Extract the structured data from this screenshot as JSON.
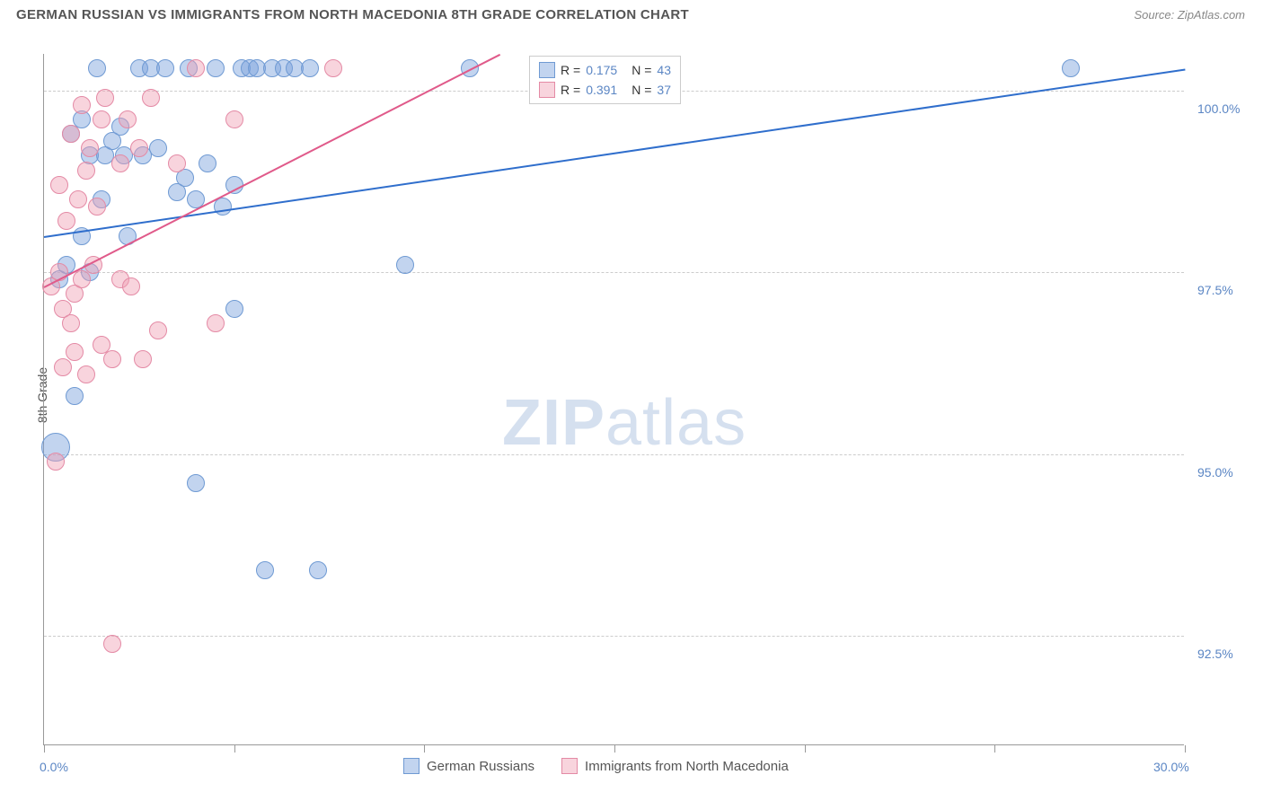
{
  "header": {
    "title": "GERMAN RUSSIAN VS IMMIGRANTS FROM NORTH MACEDONIA 8TH GRADE CORRELATION CHART",
    "source": "Source: ZipAtlas.com"
  },
  "chart": {
    "type": "scatter",
    "y_axis_label": "8th Grade",
    "background_color": "#ffffff",
    "grid_color": "#cccccc",
    "axis_color": "#999999",
    "label_color": "#5b86c4",
    "xlim": [
      0,
      30
    ],
    "ylim": [
      91.0,
      100.5
    ],
    "y_ticks": [
      {
        "v": 92.5,
        "label": "92.5%"
      },
      {
        "v": 95.0,
        "label": "95.0%"
      },
      {
        "v": 97.5,
        "label": "97.5%"
      },
      {
        "v": 100.0,
        "label": "100.0%"
      }
    ],
    "x_ticks": [
      0,
      5,
      10,
      15,
      20,
      25,
      30
    ],
    "x_tick_labels": [
      {
        "v": 0,
        "label": "0.0%"
      },
      {
        "v": 30,
        "label": "30.0%"
      }
    ],
    "watermark": {
      "text_bold": "ZIP",
      "text_rest": "atlas"
    },
    "series": [
      {
        "name": "German Russians",
        "color_fill": "rgba(120,160,220,0.45)",
        "color_stroke": "#6f9ad3",
        "marker_radius": 10,
        "r_value": "0.175",
        "n_value": "43",
        "trend": {
          "x1": 0,
          "y1": 98.0,
          "x2": 30,
          "y2": 100.3,
          "color": "#2f6ecc",
          "width": 2
        },
        "points": [
          {
            "x": 0.3,
            "y": 95.1,
            "r": 16
          },
          {
            "x": 0.4,
            "y": 97.4
          },
          {
            "x": 0.6,
            "y": 97.6
          },
          {
            "x": 0.7,
            "y": 99.4
          },
          {
            "x": 0.8,
            "y": 95.8
          },
          {
            "x": 1.0,
            "y": 98.0
          },
          {
            "x": 1.0,
            "y": 99.6
          },
          {
            "x": 1.2,
            "y": 99.1
          },
          {
            "x": 1.2,
            "y": 97.5
          },
          {
            "x": 1.4,
            "y": 100.3
          },
          {
            "x": 1.5,
            "y": 98.5
          },
          {
            "x": 1.6,
            "y": 99.1
          },
          {
            "x": 1.8,
            "y": 99.3
          },
          {
            "x": 2.0,
            "y": 99.5
          },
          {
            "x": 2.1,
            "y": 99.1
          },
          {
            "x": 2.2,
            "y": 98.0
          },
          {
            "x": 2.5,
            "y": 100.3
          },
          {
            "x": 2.6,
            "y": 99.1
          },
          {
            "x": 2.8,
            "y": 100.3
          },
          {
            "x": 3.0,
            "y": 99.2
          },
          {
            "x": 3.2,
            "y": 100.3
          },
          {
            "x": 3.5,
            "y": 98.6
          },
          {
            "x": 3.7,
            "y": 98.8
          },
          {
            "x": 3.8,
            "y": 100.3
          },
          {
            "x": 4.0,
            "y": 98.5
          },
          {
            "x": 4.0,
            "y": 94.6
          },
          {
            "x": 4.3,
            "y": 99.0
          },
          {
            "x": 4.5,
            "y": 100.3
          },
          {
            "x": 4.7,
            "y": 98.4
          },
          {
            "x": 5.0,
            "y": 98.7
          },
          {
            "x": 5.0,
            "y": 97.0
          },
          {
            "x": 5.2,
            "y": 100.3
          },
          {
            "x": 5.4,
            "y": 100.3
          },
          {
            "x": 5.6,
            "y": 100.3
          },
          {
            "x": 5.8,
            "y": 93.4
          },
          {
            "x": 6.0,
            "y": 100.3
          },
          {
            "x": 6.3,
            "y": 100.3
          },
          {
            "x": 6.6,
            "y": 100.3
          },
          {
            "x": 7.0,
            "y": 100.3
          },
          {
            "x": 7.2,
            "y": 93.4
          },
          {
            "x": 9.5,
            "y": 97.6
          },
          {
            "x": 11.2,
            "y": 100.3
          },
          {
            "x": 27.0,
            "y": 100.3
          }
        ]
      },
      {
        "name": "Immigrants from North Macedonia",
        "color_fill": "rgba(240,160,180,0.45)",
        "color_stroke": "#e48aa5",
        "marker_radius": 10,
        "r_value": "0.391",
        "n_value": "37",
        "trend": {
          "x1": 0,
          "y1": 97.3,
          "x2": 12,
          "y2": 100.5,
          "color": "#e05a8a",
          "width": 2
        },
        "points": [
          {
            "x": 0.2,
            "y": 97.3
          },
          {
            "x": 0.3,
            "y": 94.9
          },
          {
            "x": 0.4,
            "y": 97.5
          },
          {
            "x": 0.4,
            "y": 98.7
          },
          {
            "x": 0.5,
            "y": 97.0
          },
          {
            "x": 0.5,
            "y": 96.2
          },
          {
            "x": 0.6,
            "y": 98.2
          },
          {
            "x": 0.7,
            "y": 99.4
          },
          {
            "x": 0.7,
            "y": 96.8
          },
          {
            "x": 0.8,
            "y": 97.2
          },
          {
            "x": 0.8,
            "y": 96.4
          },
          {
            "x": 0.9,
            "y": 98.5
          },
          {
            "x": 1.0,
            "y": 99.8
          },
          {
            "x": 1.0,
            "y": 97.4
          },
          {
            "x": 1.1,
            "y": 96.1
          },
          {
            "x": 1.1,
            "y": 98.9
          },
          {
            "x": 1.2,
            "y": 99.2
          },
          {
            "x": 1.3,
            "y": 97.6
          },
          {
            "x": 1.4,
            "y": 98.4
          },
          {
            "x": 1.5,
            "y": 99.6
          },
          {
            "x": 1.5,
            "y": 96.5
          },
          {
            "x": 1.6,
            "y": 99.9
          },
          {
            "x": 1.8,
            "y": 96.3
          },
          {
            "x": 1.8,
            "y": 92.4
          },
          {
            "x": 2.0,
            "y": 97.4
          },
          {
            "x": 2.0,
            "y": 99.0
          },
          {
            "x": 2.2,
            "y": 99.6
          },
          {
            "x": 2.3,
            "y": 97.3
          },
          {
            "x": 2.5,
            "y": 99.2
          },
          {
            "x": 2.6,
            "y": 96.3
          },
          {
            "x": 2.8,
            "y": 99.9
          },
          {
            "x": 3.0,
            "y": 96.7
          },
          {
            "x": 3.5,
            "y": 99.0
          },
          {
            "x": 4.0,
            "y": 100.3
          },
          {
            "x": 4.5,
            "y": 96.8
          },
          {
            "x": 5.0,
            "y": 99.6
          },
          {
            "x": 7.6,
            "y": 100.3
          }
        ]
      }
    ],
    "legend_bottom": [
      {
        "swatch_fill": "rgba(120,160,220,0.45)",
        "swatch_stroke": "#6f9ad3",
        "label": "German Russians"
      },
      {
        "swatch_fill": "rgba(240,160,180,0.45)",
        "swatch_stroke": "#e48aa5",
        "label": "Immigrants from North Macedonia"
      }
    ]
  }
}
